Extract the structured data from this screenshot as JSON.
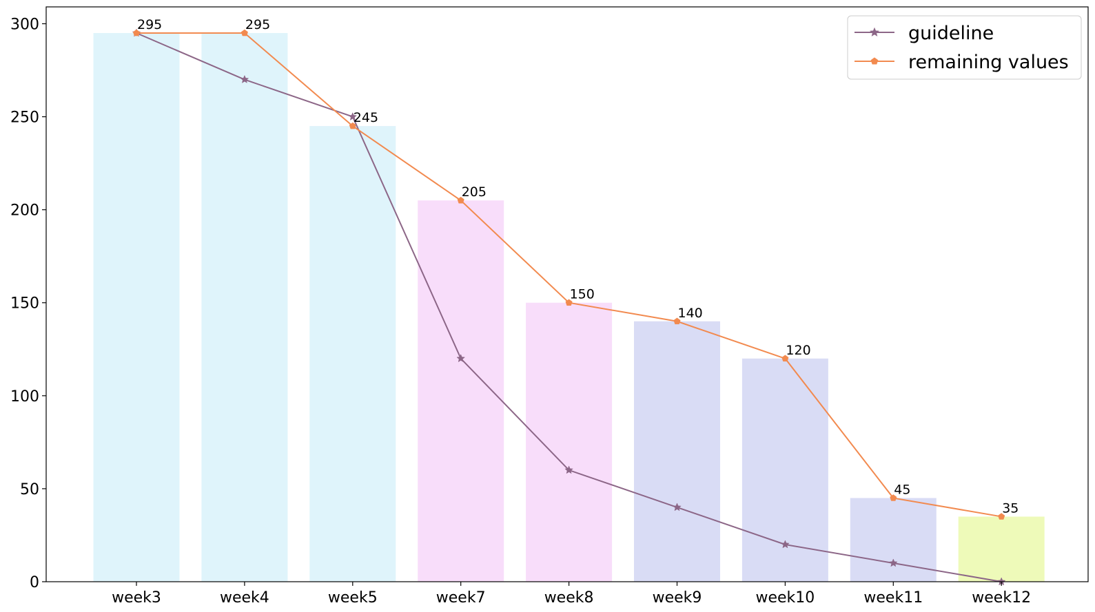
{
  "chart_data": {
    "type": "bar",
    "categories": [
      "week3",
      "week4",
      "week5",
      "week7",
      "week8",
      "week9",
      "week10",
      "week11",
      "week12"
    ],
    "bars": {
      "values": [
        295,
        295,
        245,
        205,
        150,
        140,
        120,
        45,
        35
      ],
      "colors": [
        "#dff4fb",
        "#dff4fb",
        "#dff4fb",
        "#f8ddfa",
        "#f8ddfa",
        "#d9dcf5",
        "#d9dcf5",
        "#d9dcf5",
        "#eefab9"
      ]
    },
    "series": [
      {
        "name": "guideline",
        "type": "line",
        "marker": "star",
        "color": "#8c6687",
        "values": [
          295,
          270,
          250,
          120,
          60,
          40,
          20,
          10,
          0
        ]
      },
      {
        "name": "remaining values",
        "type": "line",
        "marker": "pentagon",
        "color": "#f28a4f",
        "values": [
          295,
          295,
          245,
          205,
          150,
          140,
          120,
          45,
          35
        ]
      }
    ],
    "data_labels": [
      "295",
      "295",
      "245",
      "205",
      "150",
      "140",
      "120",
      "45",
      "35"
    ],
    "ylim": [
      0,
      310
    ],
    "yticks": [
      0,
      50,
      100,
      150,
      200,
      250,
      300
    ],
    "title": "",
    "xlabel": "",
    "ylabel": "",
    "grid": false,
    "legend_position": "top-right"
  }
}
